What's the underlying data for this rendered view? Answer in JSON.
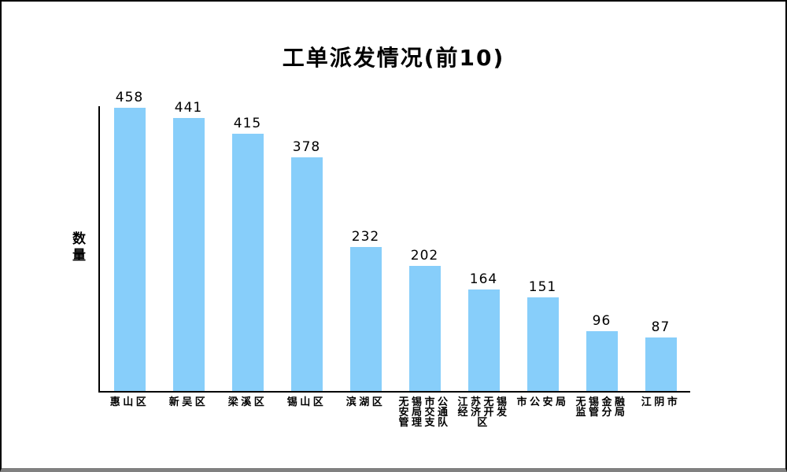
{
  "chart_data": {
    "type": "bar",
    "title": "工单派发情况(前10)",
    "xlabel": "",
    "ylabel": "数量",
    "categories": [
      "惠山区",
      "新吴区",
      "梁溪区",
      "锡山区",
      "滨湖区",
      "无锡市公安局交通管理支队",
      "江苏无锡经济开发区",
      "市公安局",
      "无锡金融监管分局",
      "江阴市"
    ],
    "values": [
      458,
      441,
      415,
      378,
      232,
      202,
      164,
      151,
      96,
      87
    ],
    "value_labels_shown": true,
    "ylim": [
      0,
      460
    ],
    "grid": false,
    "legend_position": "none"
  },
  "colors": {
    "bar": "#87CEFA",
    "axis": "#000000",
    "text": "#000000",
    "frame_border": "#000000",
    "frame_bottom_edge": "#808080",
    "background": "#FFFFFF"
  }
}
